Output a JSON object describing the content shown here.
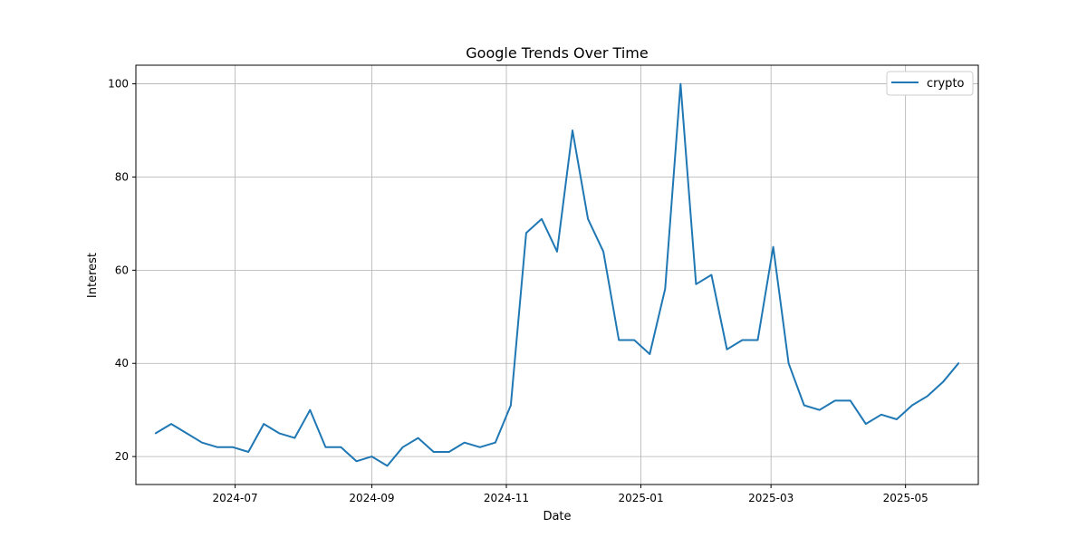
{
  "chart_data": {
    "type": "line",
    "title": "Google Trends Over Time",
    "xlabel": "Date",
    "ylabel": "Interest",
    "x_ticks": [
      "2024-07",
      "2024-09",
      "2024-11",
      "2025-01",
      "2025-03",
      "2025-05"
    ],
    "y_ticks": [
      20,
      40,
      60,
      80,
      100
    ],
    "xlim": [
      "2024-05-17",
      "2025-06-03"
    ],
    "ylim": [
      14,
      104
    ],
    "grid": true,
    "legend_position": "top-right",
    "series": [
      {
        "name": "crypto",
        "color": "#1f77b4",
        "x": [
          "2024-05-26",
          "2024-06-02",
          "2024-06-09",
          "2024-06-16",
          "2024-06-23",
          "2024-06-30",
          "2024-07-07",
          "2024-07-14",
          "2024-07-21",
          "2024-07-28",
          "2024-08-04",
          "2024-08-11",
          "2024-08-18",
          "2024-08-25",
          "2024-09-01",
          "2024-09-08",
          "2024-09-15",
          "2024-09-22",
          "2024-09-29",
          "2024-10-06",
          "2024-10-13",
          "2024-10-20",
          "2024-10-27",
          "2024-11-03",
          "2024-11-10",
          "2024-11-17",
          "2024-11-24",
          "2024-12-01",
          "2024-12-08",
          "2024-12-15",
          "2024-12-22",
          "2024-12-29",
          "2025-01-05",
          "2025-01-12",
          "2025-01-19",
          "2025-01-26",
          "2025-02-02",
          "2025-02-09",
          "2025-02-16",
          "2025-02-23",
          "2025-03-02",
          "2025-03-09",
          "2025-03-16",
          "2025-03-23",
          "2025-03-30",
          "2025-04-06",
          "2025-04-13",
          "2025-04-20",
          "2025-04-27",
          "2025-05-04",
          "2025-05-11",
          "2025-05-18",
          "2025-05-25"
        ],
        "values": [
          25,
          27,
          25,
          23,
          22,
          22,
          21,
          27,
          25,
          24,
          30,
          22,
          22,
          19,
          20,
          18,
          22,
          24,
          21,
          21,
          23,
          22,
          23,
          31,
          68,
          71,
          64,
          90,
          71,
          64,
          45,
          45,
          42,
          56,
          100,
          57,
          59,
          43,
          45,
          45,
          65,
          40,
          31,
          30,
          32,
          32,
          27,
          29,
          28,
          31,
          33,
          36,
          40
        ]
      }
    ]
  }
}
